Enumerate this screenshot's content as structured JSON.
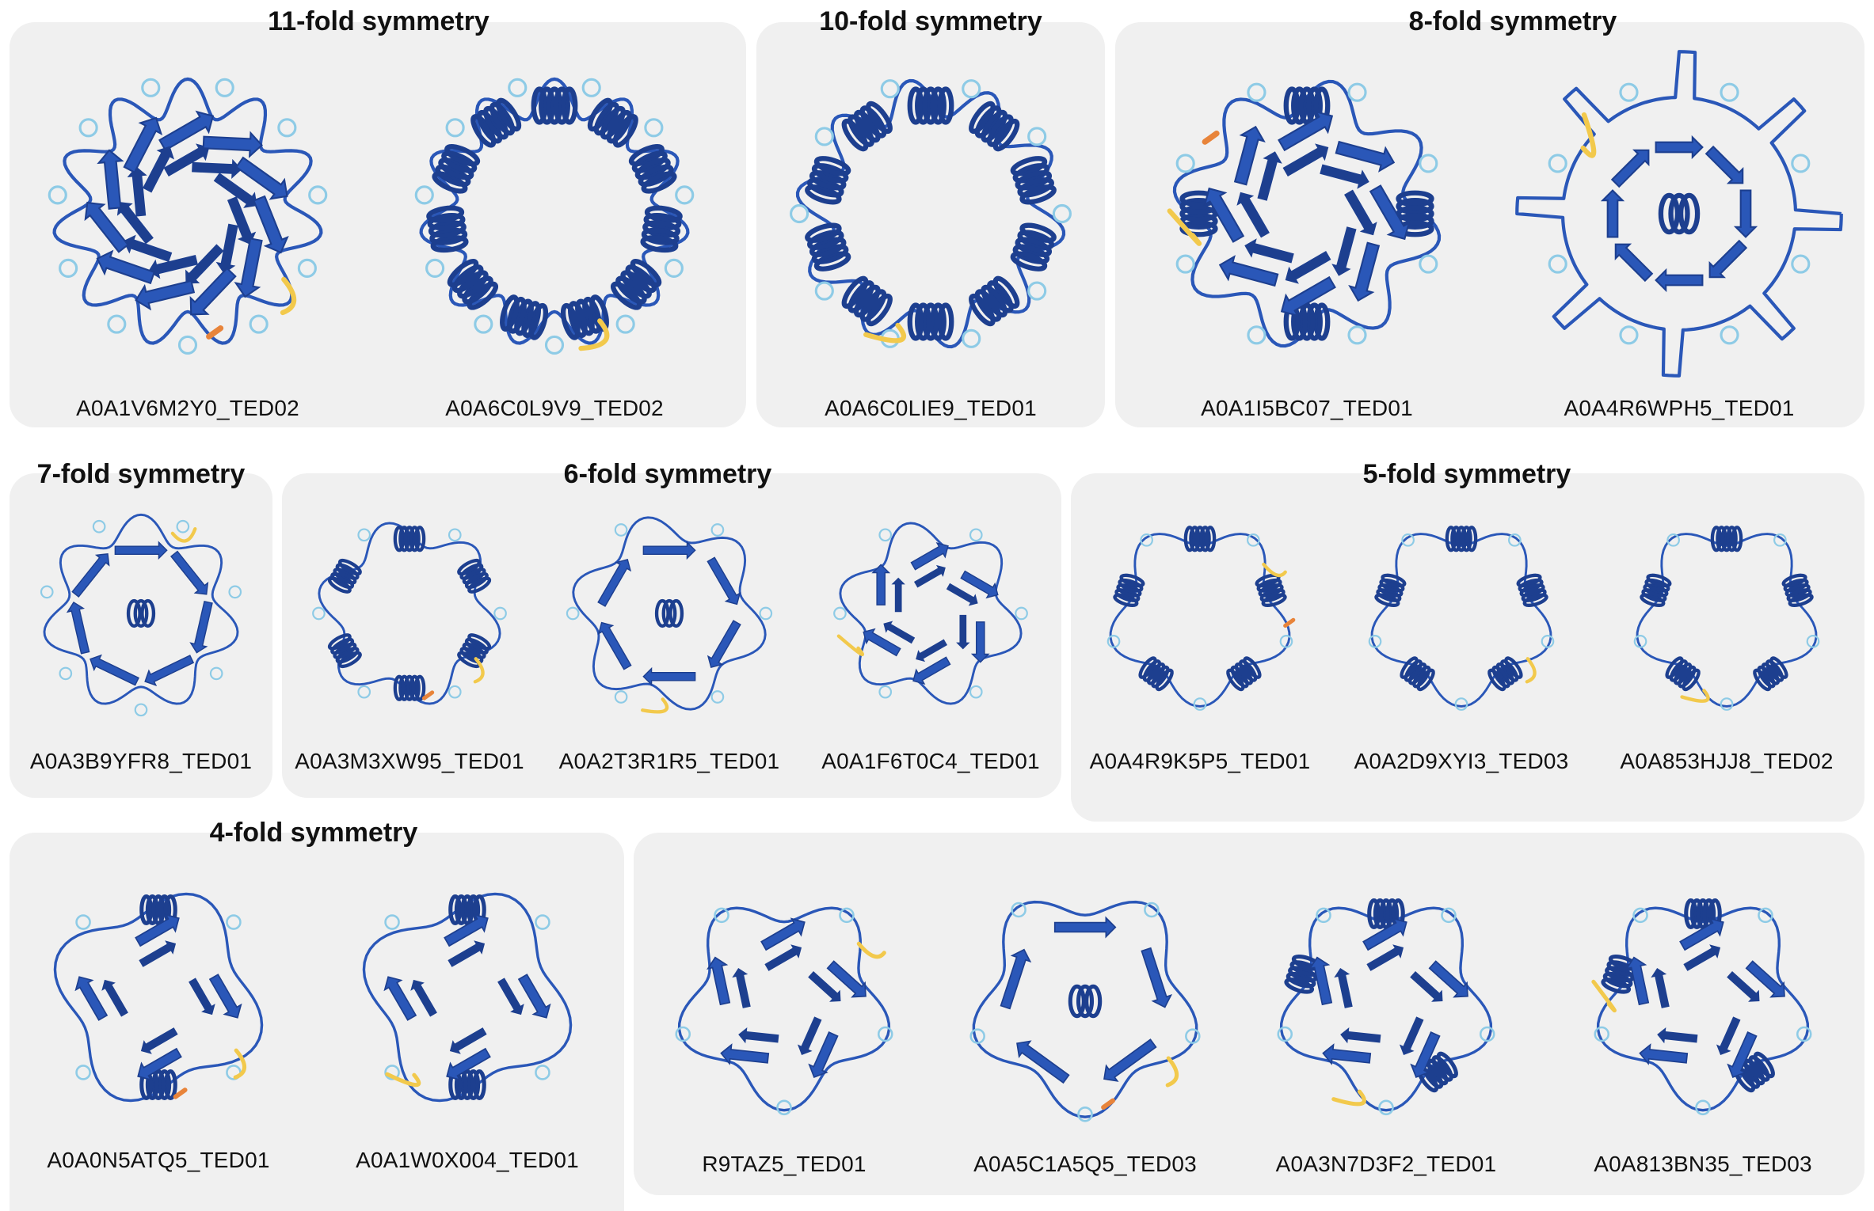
{
  "colors": {
    "panel_bg": "#f0f0f0",
    "strand_dark": "#1d3f8f",
    "strand_mid": "#2a57b8",
    "coil_light": "#8ecbe6",
    "low_confidence": "#f2c94c",
    "very_low_confidence": "#e8843a"
  },
  "groups": [
    {
      "title": "11-fold symmetry",
      "proteins": [
        {
          "id": "A0A1V6M2Y0_TED02",
          "fold": 11,
          "style": "beta"
        },
        {
          "id": "A0A6C0L9V9_TED02",
          "fold": 11,
          "style": "helix"
        }
      ]
    },
    {
      "title": "10-fold symmetry",
      "proteins": [
        {
          "id": "A0A6C0LIE9_TED01",
          "fold": 10,
          "style": "helix"
        }
      ]
    },
    {
      "title": "8-fold symmetry",
      "proteins": [
        {
          "id": "A0A1I5BC07_TED01",
          "fold": 8,
          "style": "mixed"
        },
        {
          "id": "A0A4R6WPH5_TED01",
          "fold": 8,
          "style": "spiky"
        }
      ]
    },
    {
      "title": "7-fold symmetry",
      "proteins": [
        {
          "id": "A0A3B9YFR8_TED01",
          "fold": 7,
          "style": "barrel"
        }
      ]
    },
    {
      "title": "6-fold symmetry",
      "proteins": [
        {
          "id": "A0A3M3XW95_TED01",
          "fold": 6,
          "style": "helix"
        },
        {
          "id": "A0A2T3R1R5_TED01",
          "fold": 6,
          "style": "barrel"
        },
        {
          "id": "A0A1F6T0C4_TED01",
          "fold": 6,
          "style": "beta"
        }
      ]
    },
    {
      "title": "5-fold symmetry",
      "proteins": [
        {
          "id": "A0A4R9K5P5_TED01",
          "fold": 5,
          "style": "helix"
        },
        {
          "id": "A0A2D9XYI3_TED03",
          "fold": 5,
          "style": "helix"
        },
        {
          "id": "A0A853HJJ8_TED02",
          "fold": 5,
          "style": "helix"
        },
        {
          "id": "R9TAZ5_TED01",
          "fold": 5,
          "style": "beta"
        },
        {
          "id": "A0A5C1A5Q5_TED03",
          "fold": 5,
          "style": "barrel"
        },
        {
          "id": "A0A3N7D3F2_TED01",
          "fold": 5,
          "style": "mixed"
        },
        {
          "id": "A0A813BN35_TED03",
          "fold": 5,
          "style": "mixed"
        }
      ]
    },
    {
      "title": "4-fold symmetry",
      "proteins": [
        {
          "id": "A0A0N5ATQ5_TED01",
          "fold": 4,
          "style": "mixed"
        },
        {
          "id": "A0A1W0X004_TED01",
          "fold": 4,
          "style": "mixed"
        }
      ]
    }
  ]
}
